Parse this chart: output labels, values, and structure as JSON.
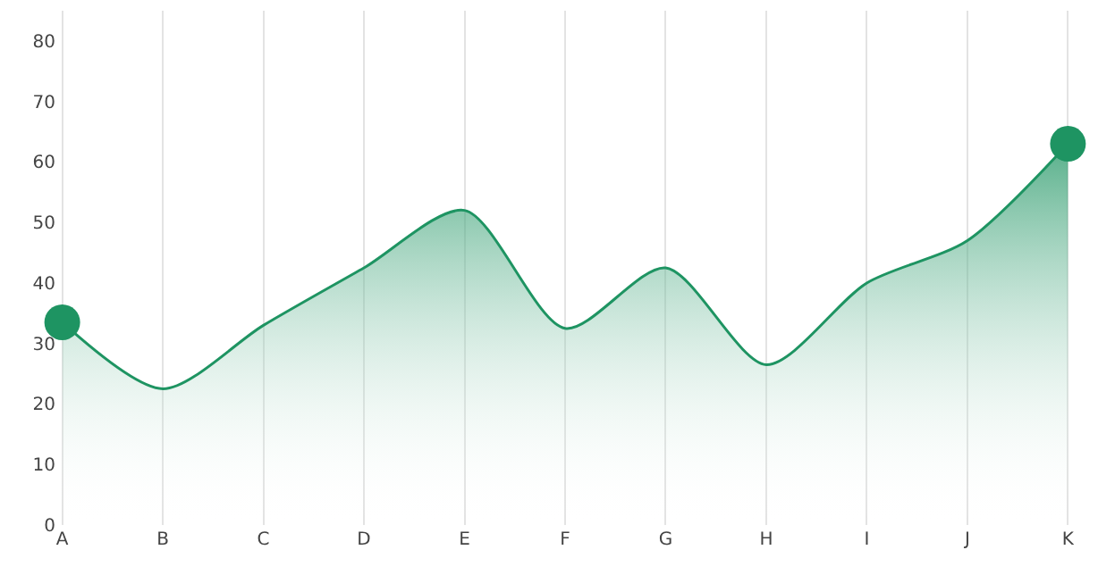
{
  "chart_data": {
    "type": "area",
    "categories": [
      "A",
      "B",
      "C",
      "D",
      "E",
      "F",
      "G",
      "H",
      "I",
      "J",
      "K"
    ],
    "series": [
      {
        "color": "#1e9462",
        "values": [
          33.5,
          22.5,
          33,
          42.5,
          52,
          32.5,
          42.5,
          26.5,
          40,
          47,
          63
        ]
      },
      {
        "type": "scatter",
        "color": "#1e9462",
        "marker": "circle",
        "x": [
          "A",
          "K"
        ],
        "values": [
          33.5,
          63
        ]
      }
    ],
    "ylim": [
      0,
      85
    ],
    "yticks": [
      0,
      10,
      20,
      30,
      40,
      50,
      60,
      70,
      80
    ],
    "grid": "x",
    "line_style": "solid"
  }
}
